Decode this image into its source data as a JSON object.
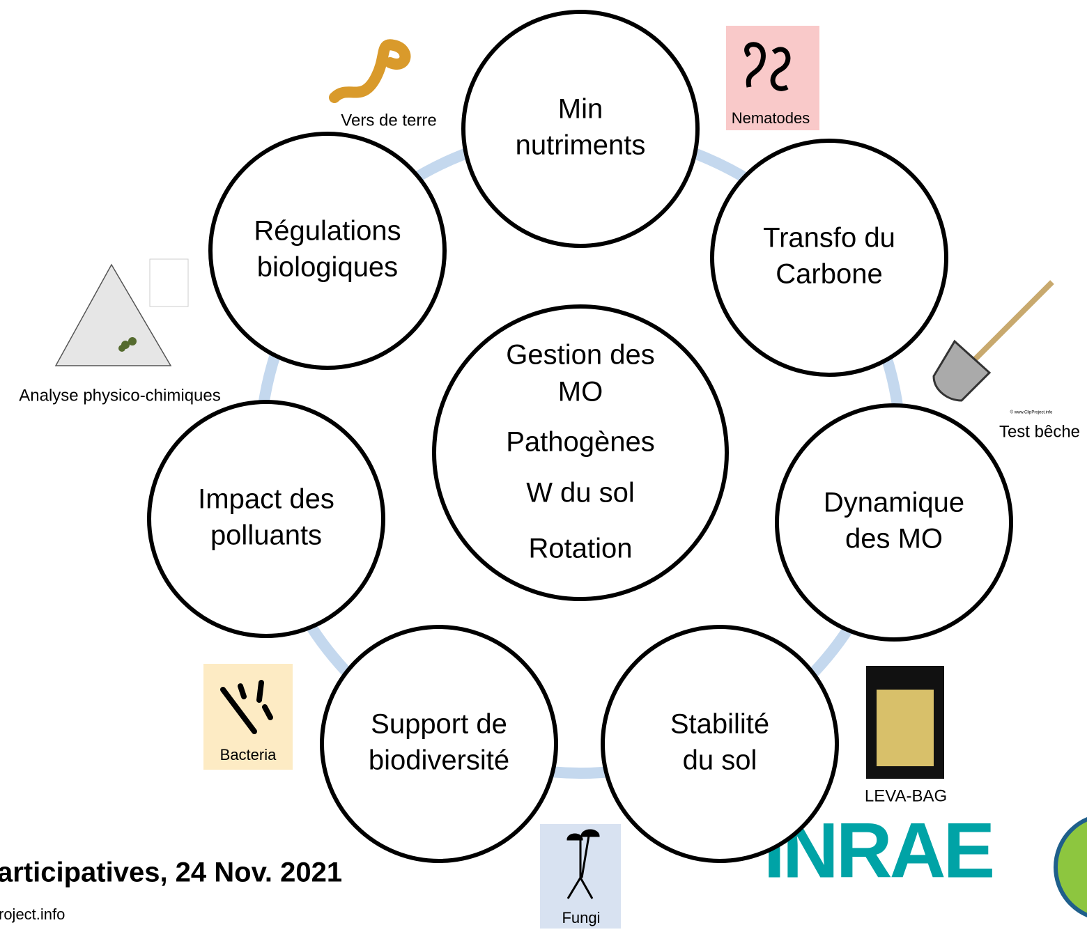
{
  "center": {
    "lines": [
      "Gestion des",
      "MO",
      "Pathogènes",
      "W du sol",
      "Rotation"
    ]
  },
  "nodes": [
    {
      "lines": [
        "Min",
        "nutriments"
      ]
    },
    {
      "lines": [
        "Transfo du",
        "Carbone"
      ]
    },
    {
      "lines": [
        "Dynamique",
        "des MO"
      ]
    },
    {
      "lines": [
        "Stabilité",
        "du sol"
      ]
    },
    {
      "lines": [
        "Support de",
        "biodiversité"
      ]
    },
    {
      "lines": [
        "Impact des",
        "polluants"
      ]
    },
    {
      "lines": [
        "Régulations",
        "biologiques"
      ]
    }
  ],
  "images": {
    "earthworm": "Vers de terre",
    "nematodes": "Nematodes",
    "soil_analysis": "Analyse physico-chimiques",
    "spade_test": "Test bêche",
    "spade_credit": "© www.ClipProject.info",
    "leva_bag": "LEVA-BAG",
    "bacteria": "Bacteria",
    "fungi": "Fungi"
  },
  "footer": {
    "event": "articipatives, 24 Nov. 2021",
    "site": "roject.info",
    "logo": "INRAE"
  }
}
